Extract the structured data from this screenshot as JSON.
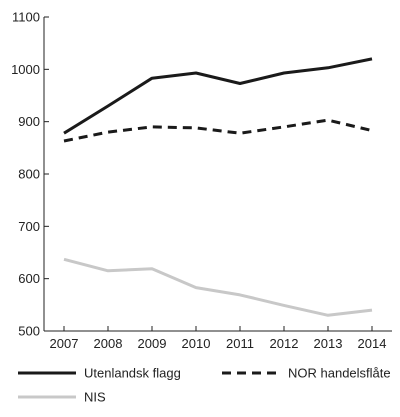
{
  "chart_data": {
    "type": "line",
    "title": "",
    "xlabel": "",
    "ylabel": "",
    "categories": [
      "2007",
      "2008",
      "2009",
      "2010",
      "2011",
      "2012",
      "2013",
      "2014"
    ],
    "ylim": [
      500,
      1100
    ],
    "yticks": [
      500,
      600,
      700,
      800,
      900,
      1000,
      1100
    ],
    "grid": false,
    "legend_position": "bottom",
    "series": [
      {
        "name": "Utenlandsk flagg",
        "values": [
          878,
          930,
          983,
          993,
          973,
          993,
          1003,
          1020
        ],
        "color": "#1a1a1a",
        "style": "solid"
      },
      {
        "name": "NOR handelsflåte",
        "values": [
          863,
          880,
          890,
          888,
          878,
          890,
          903,
          883
        ],
        "color": "#1a1a1a",
        "style": "dashed"
      },
      {
        "name": "NIS",
        "values": [
          637,
          615,
          619,
          583,
          569,
          549,
          530,
          540
        ],
        "color": "#c8c8c8",
        "style": "solid"
      }
    ]
  }
}
